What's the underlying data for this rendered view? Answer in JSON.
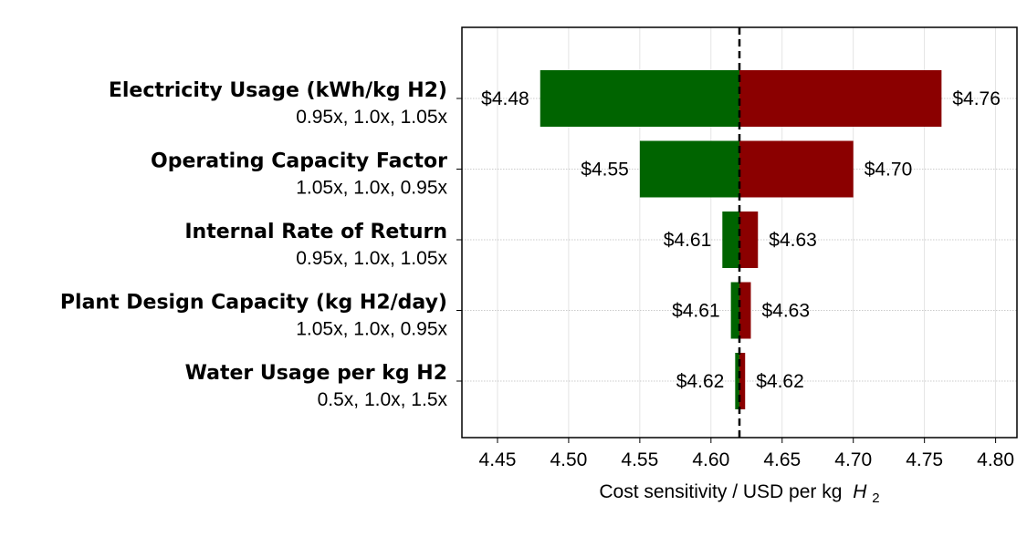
{
  "chart_data": {
    "type": "bar",
    "orientation": "horizontal",
    "title": "",
    "xlabel": "Cost sensitivity / USD per kg",
    "xlabel_math": "H",
    "xlabel_math_sub": "2",
    "xlim": [
      4.425,
      4.815
    ],
    "xticks": [
      4.45,
      4.5,
      4.55,
      4.6,
      4.65,
      4.7,
      4.75,
      4.8
    ],
    "xtick_labels": [
      "4.45",
      "4.50",
      "4.55",
      "4.60",
      "4.65",
      "4.70",
      "4.75",
      "4.80"
    ],
    "baseline": 4.62,
    "grid": true,
    "low_color": "#006400",
    "high_color": "#8b0000",
    "categories": [
      {
        "name": "Electricity Usage (kWh/kg H2)",
        "multipliers": "0.95x, 1.0x, 1.05x",
        "low": 4.48,
        "high": 4.762,
        "low_label": "$4.48",
        "high_label": "$4.76"
      },
      {
        "name": "Operating Capacity Factor",
        "multipliers": "1.05x, 1.0x, 0.95x",
        "low": 4.55,
        "high": 4.7,
        "low_label": "$4.55",
        "high_label": "$4.70"
      },
      {
        "name": "Internal Rate of Return",
        "multipliers": "0.95x, 1.0x, 1.05x",
        "low": 4.608,
        "high": 4.633,
        "low_label": "$4.61",
        "high_label": "$4.63"
      },
      {
        "name": "Plant Design Capacity (kg H2/day)",
        "multipliers": "1.05x, 1.0x, 0.95x",
        "low": 4.614,
        "high": 4.628,
        "low_label": "$4.61",
        "high_label": "$4.63"
      },
      {
        "name": "Water Usage per kg H2",
        "multipliers": "0.5x, 1.0x, 1.5x",
        "low": 4.617,
        "high": 4.624,
        "low_label": "$4.62",
        "high_label": "$4.62"
      }
    ]
  }
}
